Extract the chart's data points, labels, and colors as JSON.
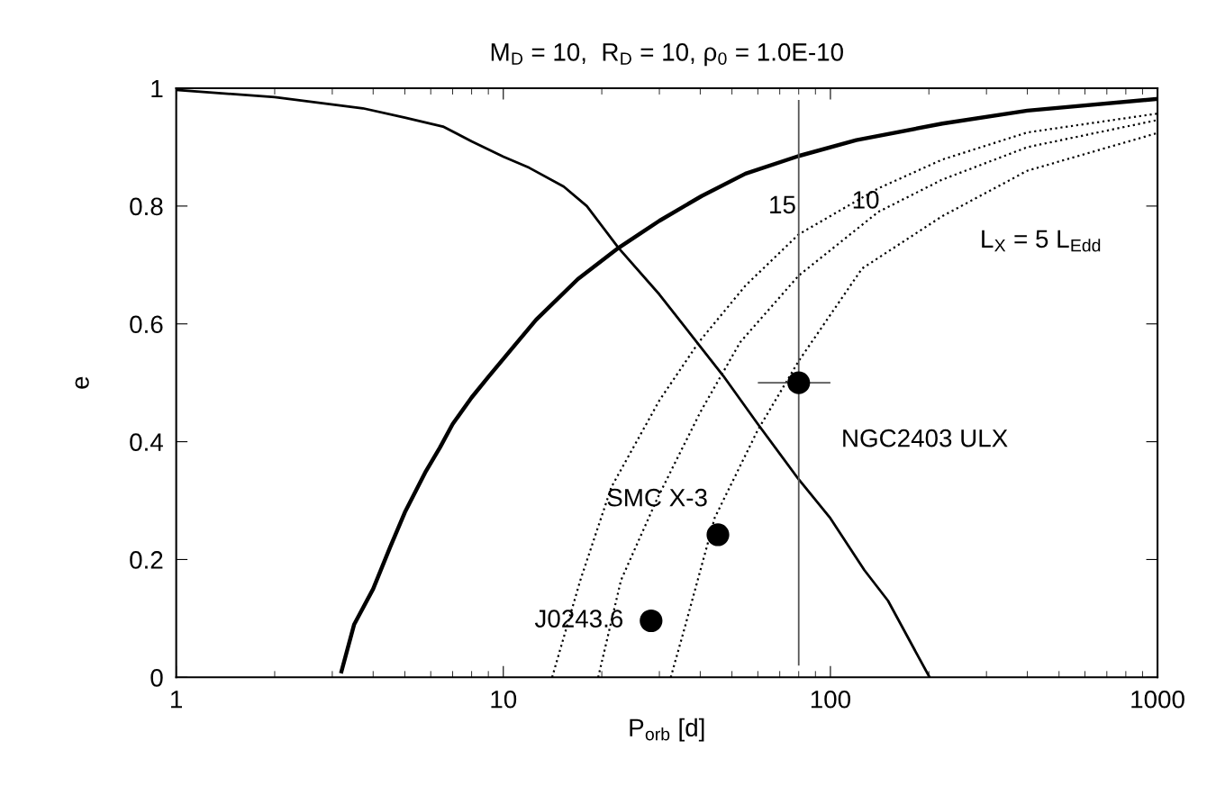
{
  "chart_data": {
    "type": "line",
    "title": "M$_{D}$ = 10,  R$_{D}$ = 10, ρ$_{0}$ = 1.0E-10",
    "xlabel": "P$_{orb}$ [d]",
    "ylabel": "e",
    "log": "x",
    "grid": false,
    "legend": false,
    "xlim": [
      1,
      1000
    ],
    "xticks": [
      1,
      10,
      100,
      1000
    ],
    "ylim": [
      0,
      1
    ],
    "yticks": [
      0,
      0.2,
      0.4,
      0.6,
      0.8,
      1
    ],
    "series": [
      {
        "color": "#000000",
        "line_style": "solid",
        "x": [
          1,
          2,
          3.72,
          5,
          6.54,
          8,
          10,
          12,
          15.3,
          18,
          22.5,
          30,
          47,
          60,
          80,
          100,
          127,
          150,
          201
        ],
        "values": [
          0.997,
          0.985,
          0.966,
          0.95,
          0.935,
          0.91,
          0.884,
          0.865,
          0.833,
          0.8,
          0.729,
          0.65,
          0.512,
          0.43,
          0.336,
          0.27,
          0.182,
          0.13,
          0
        ]
      },
      {
        "color": "#000000",
        "line_style": "solid",
        "x": [
          3.2,
          3.5,
          4,
          4.5,
          5,
          5.8,
          6.4,
          7,
          8,
          9,
          10.7,
          12.6,
          16.9,
          22.5,
          30,
          40.4,
          55,
          80,
          120,
          220,
          400,
          1000
        ],
        "values": [
          0.01,
          0.09,
          0.15,
          0.22,
          0.28,
          0.35,
          0.39,
          0.43,
          0.475,
          0.51,
          0.56,
          0.607,
          0.676,
          0.729,
          0.775,
          0.817,
          0.855,
          0.885,
          0.912,
          0.94,
          0.962,
          0.982
        ]
      },
      {
        "color": "#000000",
        "line_style": "dotted",
        "x": [
          14.1,
          17.2,
          21.4,
          30,
          39.6,
          55,
          80,
          140,
          220,
          400,
          1000
        ],
        "values": [
          0,
          0.165,
          0.323,
          0.47,
          0.569,
          0.665,
          0.752,
          0.83,
          0.879,
          0.925,
          0.957
        ]
      },
      {
        "color": "#000000",
        "line_style": "dotted",
        "x": [
          19.5,
          22.9,
          29.7,
          40,
          53,
          80,
          140,
          220,
          400,
          1000
        ],
        "values": [
          0,
          0.165,
          0.306,
          0.45,
          0.569,
          0.682,
          0.79,
          0.845,
          0.9,
          0.946
        ]
      },
      {
        "color": "#000000",
        "line_style": "dotted",
        "x": [
          32.5,
          35.6,
          44.3,
          60,
          80,
          125,
          220,
          400,
          1000
        ],
        "values": [
          0,
          0.078,
          0.271,
          0.42,
          0.537,
          0.694,
          0.783,
          0.86,
          0.924
        ]
      },
      {
        "type": "scatter",
        "color": "#000000",
        "marker": "circle",
        "x": [
          28.3,
          45.3,
          80
        ],
        "values": [
          0.096,
          0.242,
          0.5
        ],
        "errors": [
          null,
          null,
          [
            0.02,
            0.98
          ]
        ],
        "xerrors": [
          null,
          null,
          [
            60,
            100
          ]
        ]
      }
    ],
    "annotations": [
      {
        "text": "15",
        "x": 80,
        "y": 0.752
      },
      {
        "text": "10",
        "x": 140,
        "y": 0.79
      },
      {
        "text": "L$_{X}$ = 5 L$_{Edd}$",
        "x": 220,
        "y": 0.783
      },
      {
        "text": "J0243.6",
        "x": 28.3,
        "y": 0.096
      },
      {
        "text": "SMC X-3",
        "x": 45.3,
        "y": 0.242
      },
      {
        "text": "NGC2403 ULX",
        "x": 80,
        "y": 0.5
      }
    ]
  }
}
